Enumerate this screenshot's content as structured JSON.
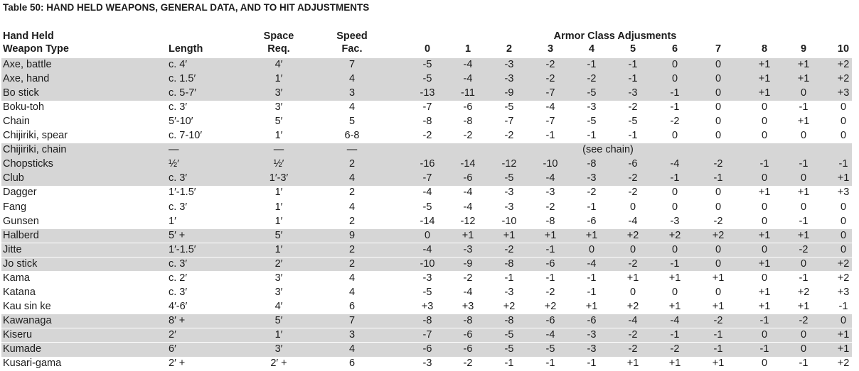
{
  "title": "Table 50: HAND HELD WEAPONS, GENERAL DATA, AND TO HIT ADJUSTMENTS",
  "headers": {
    "weapon_line1": "Hand Held",
    "weapon_line2": "Weapon Type",
    "length": "Length",
    "space_line1": "Space",
    "space_line2": "Req.",
    "speed_line1": "Speed",
    "speed_line2": "Fac.",
    "armor_group": "Armor Class Adjusments",
    "ac": [
      "0",
      "1",
      "2",
      "3",
      "4",
      "5",
      "6",
      "7",
      "8",
      "9",
      "10"
    ]
  },
  "rows": [
    {
      "name": "Axe, battle",
      "length": "c. 4′",
      "space": "4′",
      "speed": "7",
      "adj": [
        "-5",
        "-4",
        "-3",
        "-2",
        "-1",
        "-1",
        "0",
        "0",
        "+1",
        "+1",
        "+2"
      ],
      "shaded": true
    },
    {
      "name": "Axe, hand",
      "length": "c. 1.5′",
      "space": "1′",
      "speed": "4",
      "adj": [
        "-5",
        "-4",
        "-3",
        "-2",
        "-2",
        "-1",
        "0",
        "0",
        "+1",
        "+1",
        "+2"
      ],
      "shaded": true
    },
    {
      "name": "Bo stick",
      "length": "c. 5-7′",
      "space": "3′",
      "speed": "3",
      "adj": [
        "-13",
        "-11",
        "-9",
        "-7",
        "-5",
        "-3",
        "-1",
        "0",
        "+1",
        "0",
        "+3"
      ],
      "shaded": true
    },
    {
      "name": "Boku-toh",
      "length": "c. 3′",
      "space": "3′",
      "speed": "4",
      "adj": [
        "-7",
        "-6",
        "-5",
        "-4",
        "-3",
        "-2",
        "-1",
        "0",
        "0",
        "-1",
        "0"
      ],
      "shaded": false
    },
    {
      "name": "Chain",
      "length": "5′-10′",
      "space": "5′",
      "speed": "5",
      "adj": [
        "-8",
        "-8",
        "-7",
        "-7",
        "-5",
        "-5",
        "-2",
        "0",
        "0",
        "+1",
        "0"
      ],
      "shaded": false
    },
    {
      "name": "Chijiriki, spear",
      "length": "c. 7-10′",
      "space": "1′",
      "speed": "6-8",
      "adj": [
        "-2",
        "-2",
        "-2",
        "-1",
        "-1",
        "-1",
        "0",
        "0",
        "0",
        "0",
        "0"
      ],
      "shaded": false
    },
    {
      "name": "Chijiriki, chain",
      "length": "—",
      "space": "—",
      "speed": "—",
      "note": "(see chain)",
      "adj": [],
      "shaded": true
    },
    {
      "name": "Chopsticks",
      "length": "½′",
      "space": "½′",
      "speed": "2",
      "adj": [
        "-16",
        "-14",
        "-12",
        "-10",
        "-8",
        "-6",
        "-4",
        "-2",
        "-1",
        "-1",
        "-1"
      ],
      "shaded": true
    },
    {
      "name": "Club",
      "length": "c. 3′",
      "space": "1′-3′",
      "speed": "4",
      "adj": [
        "-7",
        "-6",
        "-5",
        "-4",
        "-3",
        "-2",
        "-1",
        "-1",
        "0",
        "0",
        "+1"
      ],
      "shaded": true
    },
    {
      "name": "Dagger",
      "length": "1′-1.5′",
      "space": "1′",
      "speed": "2",
      "adj": [
        "-4",
        "-4",
        "-3",
        "-3",
        "-2",
        "-2",
        "0",
        "0",
        "+1",
        "+1",
        "+3"
      ],
      "shaded": false
    },
    {
      "name": "Fang",
      "length": "c. 3′",
      "space": "1′",
      "speed": "4",
      "adj": [
        "-5",
        "-4",
        "-3",
        "-2",
        "-1",
        "0",
        "0",
        "0",
        "0",
        "0",
        "0"
      ],
      "shaded": false
    },
    {
      "name": "Gunsen",
      "length": "1′",
      "space": "1′",
      "speed": "2",
      "adj": [
        "-14",
        "-12",
        "-10",
        "-8",
        "-6",
        "-4",
        "-3",
        "-2",
        "0",
        "-1",
        "0"
      ],
      "shaded": false
    },
    {
      "name": "Halberd",
      "length": "5′ +",
      "space": "5′",
      "speed": "9",
      "adj": [
        "0",
        "+1",
        "+1",
        "+1",
        "+1",
        "+2",
        "+2",
        "+2",
        "+1",
        "+1",
        "0"
      ],
      "shaded": true
    },
    {
      "name": "Jitte",
      "length": "1′-1.5′",
      "space": "1′",
      "speed": "2",
      "adj": [
        "-4",
        "-3",
        "-2",
        "-1",
        "0",
        "0",
        "0",
        "0",
        "0",
        "-2",
        "0"
      ],
      "shaded": true
    },
    {
      "name": "Jo stick",
      "length": "c. 3′",
      "space": "2′",
      "speed": "2",
      "adj": [
        "-10",
        "-9",
        "-8",
        "-6",
        "-4",
        "-2",
        "-1",
        "0",
        "+1",
        "0",
        "+2"
      ],
      "shaded": true
    },
    {
      "name": "Kama",
      "length": "c. 2′",
      "space": "3′",
      "speed": "4",
      "adj": [
        "-3",
        "-2",
        "-1",
        "-1",
        "-1",
        "+1",
        "+1",
        "+1",
        "0",
        "-1",
        "+2"
      ],
      "shaded": false
    },
    {
      "name": "Katana",
      "length": "c. 3′",
      "space": "3′",
      "speed": "4",
      "adj": [
        "-5",
        "-4",
        "-3",
        "-2",
        "-1",
        "0",
        "0",
        "0",
        "+1",
        "+2",
        "+3"
      ],
      "shaded": false
    },
    {
      "name": "Kau sin ke",
      "length": "4′-6′",
      "space": "4′",
      "speed": "6",
      "adj": [
        "+3",
        "+3",
        "+2",
        "+2",
        "+1",
        "+2",
        "+1",
        "+1",
        "+1",
        "+1",
        "-1"
      ],
      "shaded": false
    },
    {
      "name": "Kawanaga",
      "length": "8′ +",
      "space": "5′",
      "speed": "7",
      "adj": [
        "-8",
        "-8",
        "-8",
        "-6",
        "-6",
        "-4",
        "-4",
        "-2",
        "-1",
        "-2",
        "0"
      ],
      "shaded": true
    },
    {
      "name": "Kiseru",
      "length": "2′",
      "space": "1′",
      "speed": "3",
      "adj": [
        "-7",
        "-6",
        "-5",
        "-4",
        "-3",
        "-2",
        "-1",
        "-1",
        "0",
        "0",
        "+1"
      ],
      "shaded": true
    },
    {
      "name": "Kumade",
      "length": "6′",
      "space": "3′",
      "speed": "4",
      "adj": [
        "-6",
        "-6",
        "-5",
        "-5",
        "-3",
        "-2",
        "-2",
        "-1",
        "-1",
        "0",
        "+1"
      ],
      "shaded": true
    },
    {
      "name": "Kusari-gama",
      "length": "2′ +",
      "space": "2′ +",
      "speed": "6",
      "adj": [
        "-3",
        "-2",
        "-1",
        "-1",
        "-1",
        "+1",
        "+1",
        "+1",
        "0",
        "-1",
        "+2"
      ],
      "shaded": false
    }
  ]
}
